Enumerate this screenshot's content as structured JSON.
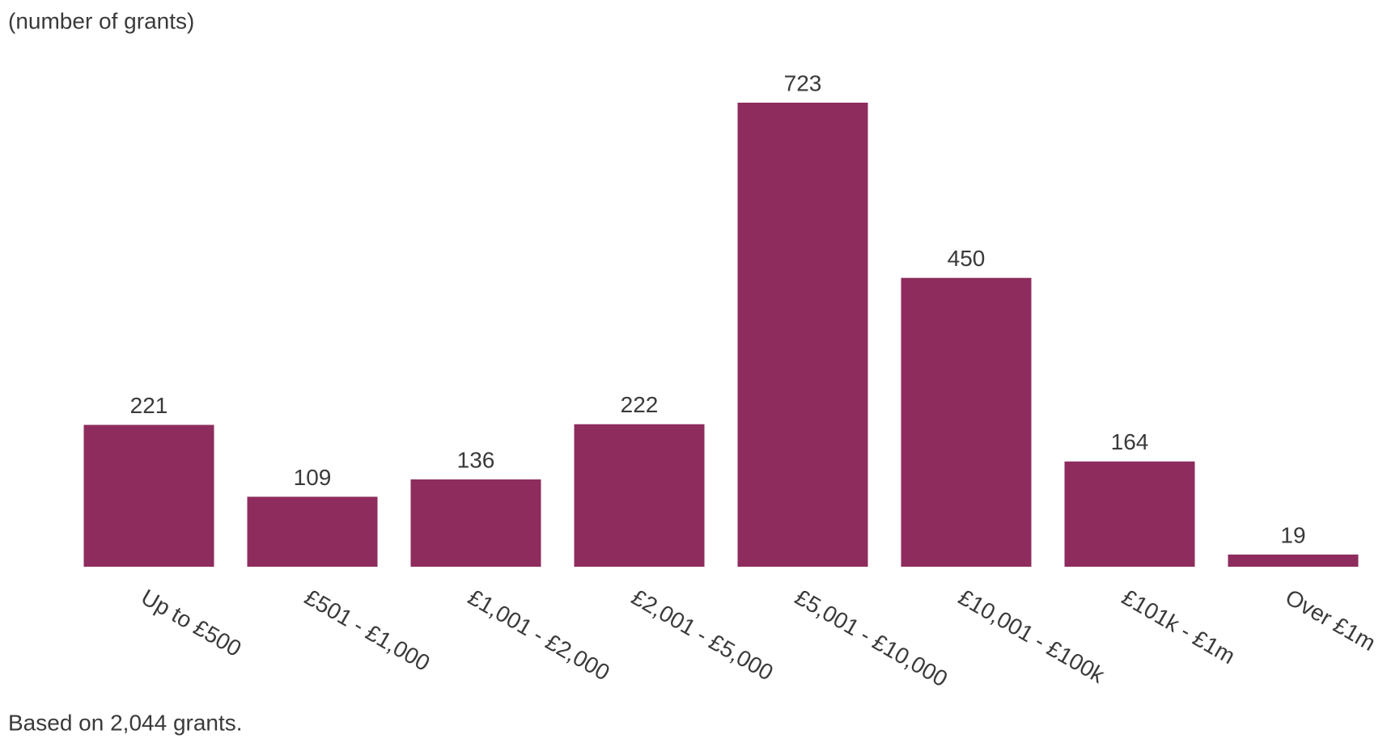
{
  "chart_data": {
    "type": "bar",
    "subtitle": "(number of grants)",
    "note": "Based on 2,044 grants.",
    "categories": [
      "Up to £500",
      "£501 - £1,000",
      "£1,001 - £2,000",
      "£2,001 - £5,000",
      "£5,001 - £10,000",
      "£10,001 - £100k",
      "£101k - £1m",
      "Over £1m"
    ],
    "values": [
      221,
      109,
      136,
      222,
      723,
      450,
      164,
      19
    ],
    "color": "#8e2c5e"
  }
}
